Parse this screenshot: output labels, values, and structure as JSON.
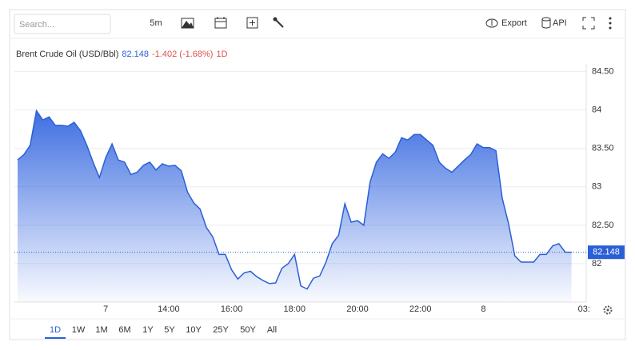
{
  "toolbar": {
    "search_placeholder": "Search...",
    "interval": "5m",
    "export": "Export",
    "api": "API"
  },
  "chart_data": {
    "type": "area",
    "categories": [
      null,
      null,
      null,
      null,
      null,
      null,
      null,
      null,
      null,
      null,
      null,
      null,
      null,
      null,
      "7",
      null,
      null,
      null,
      null,
      null,
      null,
      null,
      null,
      null,
      "14:00",
      null,
      null,
      null,
      null,
      null,
      null,
      null,
      null,
      null,
      "16:00",
      null,
      null,
      null,
      null,
      null,
      null,
      null,
      null,
      null,
      "18:00",
      null,
      null,
      null,
      null,
      null,
      null,
      null,
      null,
      null,
      "20:00",
      null,
      null,
      null,
      null,
      null,
      null,
      null,
      null,
      null,
      "22:00",
      null,
      null,
      null,
      null,
      null,
      null,
      null,
      null,
      null,
      "8",
      null,
      null,
      null,
      null,
      null,
      null,
      null,
      null,
      null,
      null,
      null,
      null,
      null,
      null,
      null,
      "03:"
    ],
    "series": [
      {
        "name": "Brent Crude Oil (USD/Bbl)",
        "color": "#2a5fd6",
        "values": [
          83.35,
          83.42,
          83.54,
          83.99,
          83.87,
          83.91,
          83.8,
          83.8,
          83.79,
          83.84,
          83.73,
          83.54,
          83.32,
          83.12,
          83.38,
          83.56,
          83.35,
          83.32,
          83.16,
          83.19,
          83.28,
          83.32,
          83.22,
          83.3,
          83.27,
          83.28,
          83.21,
          82.93,
          82.79,
          82.71,
          82.47,
          82.35,
          82.12,
          82.12,
          81.92,
          81.8,
          81.88,
          81.9,
          81.83,
          81.78,
          81.74,
          81.75,
          81.94,
          82.0,
          82.12,
          81.71,
          81.67,
          81.81,
          81.84,
          82.02,
          82.26,
          82.37,
          82.78,
          82.54,
          82.56,
          82.5,
          83.06,
          83.32,
          83.43,
          83.37,
          83.45,
          83.64,
          83.61,
          83.68,
          83.68,
          83.61,
          83.54,
          83.32,
          83.24,
          83.19,
          83.27,
          83.35,
          83.42,
          83.56,
          83.51,
          83.51,
          83.47,
          82.85,
          82.52,
          82.1,
          82.02,
          82.02,
          82.02,
          82.12,
          82.12,
          82.23,
          82.26,
          82.15,
          82.148,
          null,
          null
        ]
      }
    ],
    "last_price": 82.148,
    "change": "-1.402 (-1.68%)",
    "period": "1D",
    "ylim": [
      81.5,
      84.6
    ],
    "yticks": [
      82,
      {
        "value": 82.5,
        "label": "82.50"
      },
      83,
      {
        "value": 83.5,
        "label": "83.50"
      },
      84,
      {
        "value": 84.5,
        "label": "84.50"
      }
    ],
    "grid": true
  },
  "range_buttons": [
    "1D",
    "1W",
    "1M",
    "6M",
    "1Y",
    "5Y",
    "10Y",
    "25Y",
    "50Y",
    "All"
  ]
}
